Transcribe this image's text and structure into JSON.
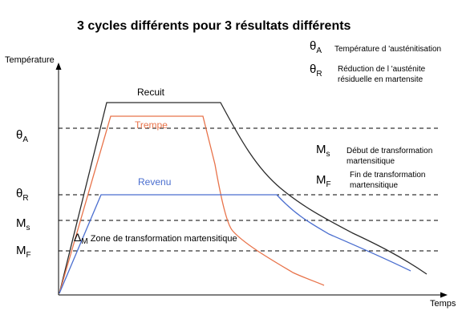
{
  "title": "3 cycles différents pour 3 résultats différents",
  "axes": {
    "y_label": "Température",
    "x_label": "Temps"
  },
  "levels": {
    "theta_A": {
      "symbol": "θ",
      "sub": "A"
    },
    "theta_R": {
      "symbol": "θ",
      "sub": "R"
    },
    "Ms": {
      "symbol": "M",
      "sub": "s"
    },
    "Mf": {
      "symbol": "M",
      "sub": "F"
    }
  },
  "legend": {
    "theta_A": {
      "symbol": "θ",
      "sub": "A",
      "text": "Température d 'austénitisation"
    },
    "theta_R": {
      "symbol": "θ",
      "sub": "R",
      "line1": "Réduction de l 'austénite",
      "line2": "résiduelle en martensite"
    },
    "Ms": {
      "symbol": "M",
      "sub": "s",
      "line1": "Début de transformation",
      "line2": "martensitique"
    },
    "Mf": {
      "symbol": "M",
      "sub": "F",
      "line1": "Fin de transformation",
      "line2": "martensitique"
    }
  },
  "curves": {
    "recuit": {
      "label": "Recuit",
      "color": "#2b2b2b"
    },
    "trempe": {
      "label": "Trempe",
      "color": "#e8734a"
    },
    "revenu": {
      "label": "Revenu",
      "color": "#4a6ecf"
    }
  },
  "zone": {
    "symbol": "Δ",
    "sub": "M",
    "text": "Zone de transformation martensitique"
  }
}
